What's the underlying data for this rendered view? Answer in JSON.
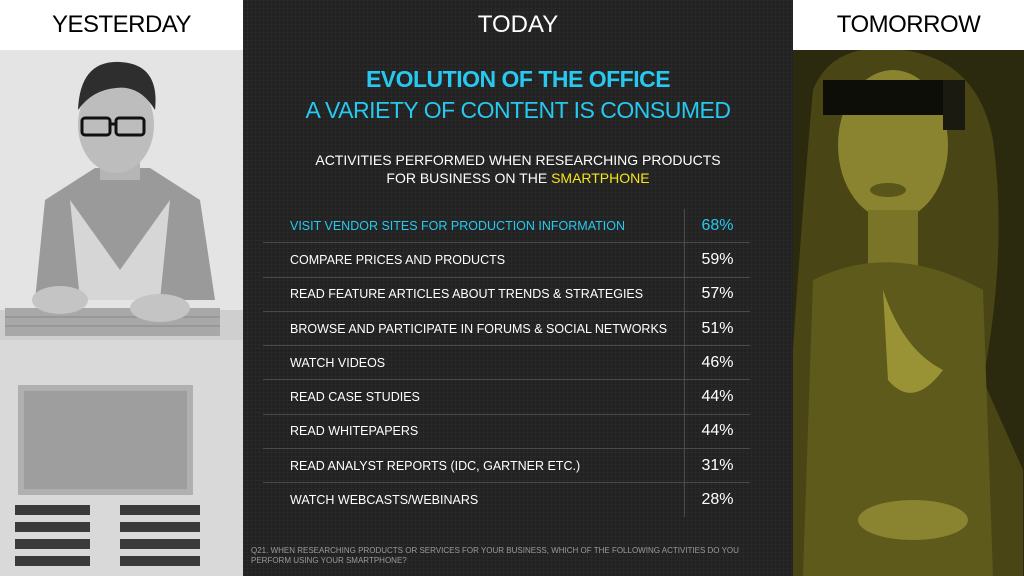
{
  "headers": {
    "left": "YESTERDAY",
    "center": "TODAY",
    "right": "TOMORROW"
  },
  "title": {
    "line1": "EVOLUTION OF THE OFFICE",
    "line2": "A VARIETY OF CONTENT IS CONSUMED"
  },
  "subtitle": {
    "line1": "ACTIVITIES PERFORMED WHEN RESEARCHING PRODUCTS",
    "line2_prefix": "FOR BUSINESS ON THE ",
    "line2_highlight": "SMARTPHONE"
  },
  "activities": [
    {
      "label": "VISIT VENDOR SITES FOR PRODUCTION INFORMATION",
      "percent": "68%"
    },
    {
      "label": "COMPARE PRICES AND PRODUCTS",
      "percent": "59%"
    },
    {
      "label": "READ FEATURE ARTICLES ABOUT TRENDS & STRATEGIES",
      "percent": "57%"
    },
    {
      "label": "BROWSE AND PARTICIPATE IN FORUMS & SOCIAL NETWORKS",
      "percent": "51%"
    },
    {
      "label": "WATCH VIDEOS",
      "percent": "46%"
    },
    {
      "label": "READ CASE STUDIES",
      "percent": "44%"
    },
    {
      "label": "READ WHITEPAPERS",
      "percent": "44%"
    },
    {
      "label": "READ ANALYST REPORTS (IDC, GARTNER ETC.)",
      "percent": "31%"
    },
    {
      "label": "WATCH WEBCASTS/WEBINARS",
      "percent": "28%"
    }
  ],
  "footnote": "Q21. WHEN RESEARCHING PRODUCTS OR SERVICES FOR YOUR BUSINESS, WHICH OF THE FOLLOWING ACTIVITIES DO YOU PERFORM USING YOUR SMARTPHONE?",
  "colors": {
    "accent": "#27c9f0",
    "highlight": "#f5e51d",
    "background": "#222222"
  }
}
